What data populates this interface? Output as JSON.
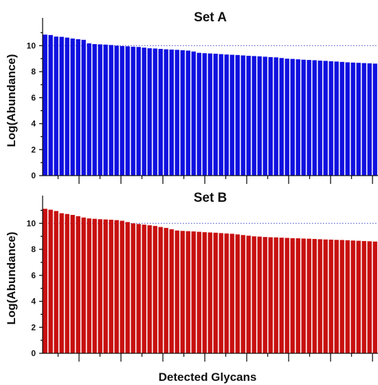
{
  "chart_data": [
    {
      "type": "bar",
      "title": "Set A",
      "ylabel": "Log(Abundance)",
      "xlabel": "",
      "ylim": [
        0,
        11.5
      ],
      "yticks": [
        0,
        2,
        4,
        6,
        8,
        10
      ],
      "reference_line": 10,
      "color": "#1010e0",
      "values": [
        10.85,
        10.82,
        10.7,
        10.68,
        10.62,
        10.55,
        10.5,
        10.45,
        10.18,
        10.12,
        10.1,
        10.08,
        10.05,
        10.0,
        9.97,
        9.95,
        9.92,
        9.9,
        9.85,
        9.8,
        9.78,
        9.75,
        9.72,
        9.7,
        9.68,
        9.65,
        9.62,
        9.55,
        9.45,
        9.42,
        9.4,
        9.38,
        9.35,
        9.32,
        9.3,
        9.28,
        9.25,
        9.22,
        9.2,
        9.18,
        9.15,
        9.12,
        9.1,
        9.05,
        9.0,
        8.98,
        8.95,
        8.92,
        8.9,
        8.88,
        8.85,
        8.83,
        8.8,
        8.78,
        8.75,
        8.72,
        8.7,
        8.68,
        8.66,
        8.64,
        8.62
      ]
    },
    {
      "type": "bar",
      "title": "Set B",
      "ylabel": "Log(Abundance)",
      "xlabel": "Detected Glycans",
      "ylim": [
        0,
        11.5
      ],
      "yticks": [
        0,
        2,
        4,
        6,
        8,
        10
      ],
      "reference_line": 10,
      "color": "#c81010",
      "values": [
        11.12,
        11.05,
        10.95,
        10.78,
        10.72,
        10.65,
        10.55,
        10.45,
        10.38,
        10.35,
        10.32,
        10.3,
        10.28,
        10.25,
        10.2,
        10.1,
        10.0,
        9.95,
        9.9,
        9.85,
        9.8,
        9.72,
        9.65,
        9.55,
        9.45,
        9.42,
        9.4,
        9.38,
        9.35,
        9.32,
        9.3,
        9.28,
        9.25,
        9.22,
        9.2,
        9.15,
        9.1,
        9.05,
        9.0,
        8.98,
        8.95,
        8.93,
        8.92,
        8.9,
        8.88,
        8.86,
        8.85,
        8.83,
        8.82,
        8.8,
        8.78,
        8.76,
        8.75,
        8.73,
        8.72,
        8.7,
        8.68,
        8.66,
        8.64,
        8.62,
        8.6
      ]
    }
  ]
}
